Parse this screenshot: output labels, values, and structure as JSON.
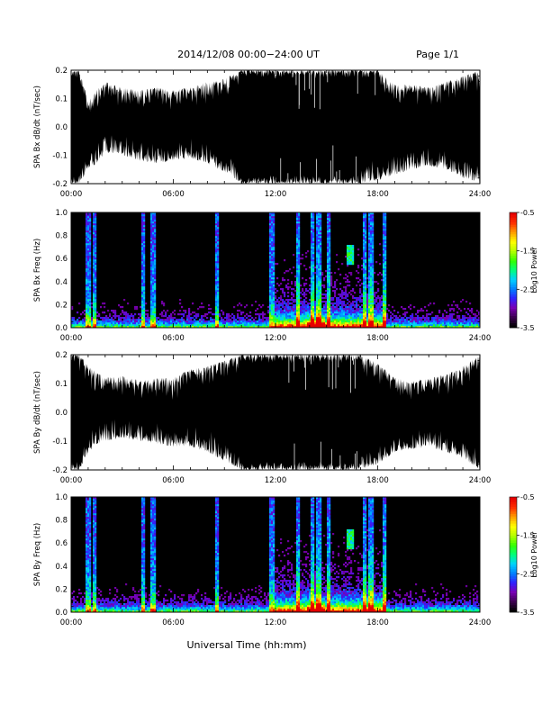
{
  "header": {
    "title": "2014/12/08   00:00−24:00 UT",
    "page": "Page 1/1"
  },
  "footer": {
    "xlabel": "Universal Time (hh:mm)"
  },
  "colors": {
    "trace": "#000000",
    "background": "#ffffff",
    "spectrogram_background": "#000000",
    "colormap": [
      "#000000",
      "#3c0050",
      "#7a00b4",
      "#3020ff",
      "#0080ff",
      "#00d2ff",
      "#00ff7c",
      "#34ff00",
      "#b4ff00",
      "#ffff00",
      "#ffa000",
      "#ff3000",
      "#e60000"
    ]
  },
  "chart_data": [
    {
      "type": "line",
      "title": "",
      "ylabel": "SPA Bx dB/dt (nT/sec)",
      "xlabel": "",
      "xlim": [
        "00:00",
        "24:00"
      ],
      "ylim": [
        -0.2,
        0.2
      ],
      "xticks": [
        "00:00",
        "06:00",
        "12:00",
        "18:00",
        "24:00"
      ],
      "yticks": [
        "-0.2",
        "-0.1",
        "0.0",
        "0.1",
        "0.2"
      ],
      "envelope": {
        "x_hours": [
          0,
          0.5,
          1,
          1.5,
          2,
          3,
          4,
          5,
          6,
          7,
          8,
          9,
          10,
          11,
          12,
          13,
          14,
          15,
          15.5,
          16,
          17,
          18,
          19,
          20,
          21,
          22,
          23,
          24
        ],
        "upper": [
          0.2,
          0.2,
          0.09,
          0.13,
          0.16,
          0.14,
          0.13,
          0.14,
          0.13,
          0.14,
          0.16,
          0.17,
          0.2,
          0.2,
          0.2,
          0.2,
          0.2,
          0.2,
          0.2,
          0.2,
          0.2,
          0.2,
          0.15,
          0.15,
          0.14,
          0.16,
          0.18,
          0.2
        ],
        "lower": [
          -0.2,
          -0.2,
          -0.15,
          -0.13,
          -0.09,
          -0.1,
          -0.12,
          -0.13,
          -0.12,
          -0.11,
          -0.13,
          -0.16,
          -0.2,
          -0.2,
          -0.2,
          -0.2,
          -0.2,
          -0.2,
          -0.2,
          -0.2,
          -0.2,
          -0.19,
          -0.17,
          -0.15,
          -0.14,
          -0.15,
          -0.18,
          -0.2
        ]
      }
    },
    {
      "type": "heatmap",
      "title": "",
      "ylabel": "SPA Bx Freq (Hz)",
      "xlabel": "",
      "xlim": [
        "00:00",
        "24:00"
      ],
      "ylim": [
        0.0,
        1.0
      ],
      "xticks": [
        "00:00",
        "06:00",
        "12:00",
        "18:00",
        "24:00"
      ],
      "yticks": [
        "0.0",
        "0.2",
        "0.4",
        "0.6",
        "0.8",
        "1.0"
      ],
      "colorbar": {
        "label": "Log10 Power",
        "range": [
          -3.5,
          -0.5
        ],
        "ticks": [
          "-0.5",
          "-1.5",
          "-2.5",
          "-3.5"
        ]
      },
      "features": {
        "broadband_bursts_hours": [
          1.0,
          1.4,
          4.2,
          4.8,
          8.6,
          11.8,
          13.3,
          14.2,
          14.55,
          15.1,
          17.2,
          17.6,
          18.4
        ],
        "active_interval_hours": [
          12.0,
          18.5
        ],
        "peak_power_hours": [
          13.8,
          14.9
        ],
        "hook_feature": {
          "hours": [
            16.2,
            16.6
          ],
          "freq_hz": [
            0.55,
            0.72
          ]
        }
      }
    },
    {
      "type": "line",
      "title": "",
      "ylabel": "SPA By dB/dt (nT/sec)",
      "xlabel": "",
      "xlim": [
        "00:00",
        "24:00"
      ],
      "ylim": [
        -0.2,
        0.2
      ],
      "xticks": [
        "00:00",
        "06:00",
        "12:00",
        "18:00",
        "24:00"
      ],
      "yticks": [
        "-0.2",
        "-0.1",
        "0.0",
        "0.1",
        "0.2"
      ],
      "envelope": {
        "x_hours": [
          0,
          0.5,
          1,
          1.5,
          2,
          3,
          4,
          5,
          6,
          7,
          8,
          9,
          10,
          11,
          12,
          13,
          14,
          15,
          15.5,
          16,
          17,
          18,
          19,
          20,
          21,
          22,
          23,
          24
        ],
        "upper": [
          0.2,
          0.2,
          0.16,
          0.14,
          0.12,
          0.13,
          0.11,
          0.12,
          0.12,
          0.15,
          0.16,
          0.18,
          0.2,
          0.2,
          0.2,
          0.2,
          0.2,
          0.2,
          0.2,
          0.2,
          0.2,
          0.17,
          0.12,
          0.11,
          0.12,
          0.13,
          0.16,
          0.2
        ],
        "lower": [
          -0.2,
          -0.2,
          -0.14,
          -0.11,
          -0.1,
          -0.09,
          -0.1,
          -0.11,
          -0.12,
          -0.12,
          -0.14,
          -0.17,
          -0.2,
          -0.2,
          -0.2,
          -0.2,
          -0.2,
          -0.2,
          -0.2,
          -0.2,
          -0.2,
          -0.18,
          -0.14,
          -0.13,
          -0.12,
          -0.14,
          -0.16,
          -0.2
        ]
      }
    },
    {
      "type": "heatmap",
      "title": "",
      "ylabel": "SPA By Freq (Hz)",
      "xlabel": "",
      "xlim": [
        "00:00",
        "24:00"
      ],
      "ylim": [
        0.0,
        1.0
      ],
      "xticks": [
        "00:00",
        "06:00",
        "12:00",
        "18:00",
        "24:00"
      ],
      "yticks": [
        "0.0",
        "0.2",
        "0.4",
        "0.6",
        "0.8",
        "1.0"
      ],
      "colorbar": {
        "label": "Log10 Power",
        "range": [
          -3.5,
          -0.5
        ],
        "ticks": [
          "-0.5",
          "-1.5",
          "-2.5",
          "-3.5"
        ]
      },
      "features": {
        "broadband_bursts_hours": [
          1.0,
          1.4,
          4.2,
          4.8,
          8.6,
          11.8,
          13.3,
          14.2,
          14.55,
          15.1,
          17.2,
          17.6,
          18.4
        ],
        "active_interval_hours": [
          12.0,
          18.5
        ],
        "peak_power_hours": [
          13.8,
          14.9
        ],
        "hook_feature": {
          "hours": [
            16.2,
            16.6
          ],
          "freq_hz": [
            0.55,
            0.72
          ]
        }
      }
    }
  ]
}
